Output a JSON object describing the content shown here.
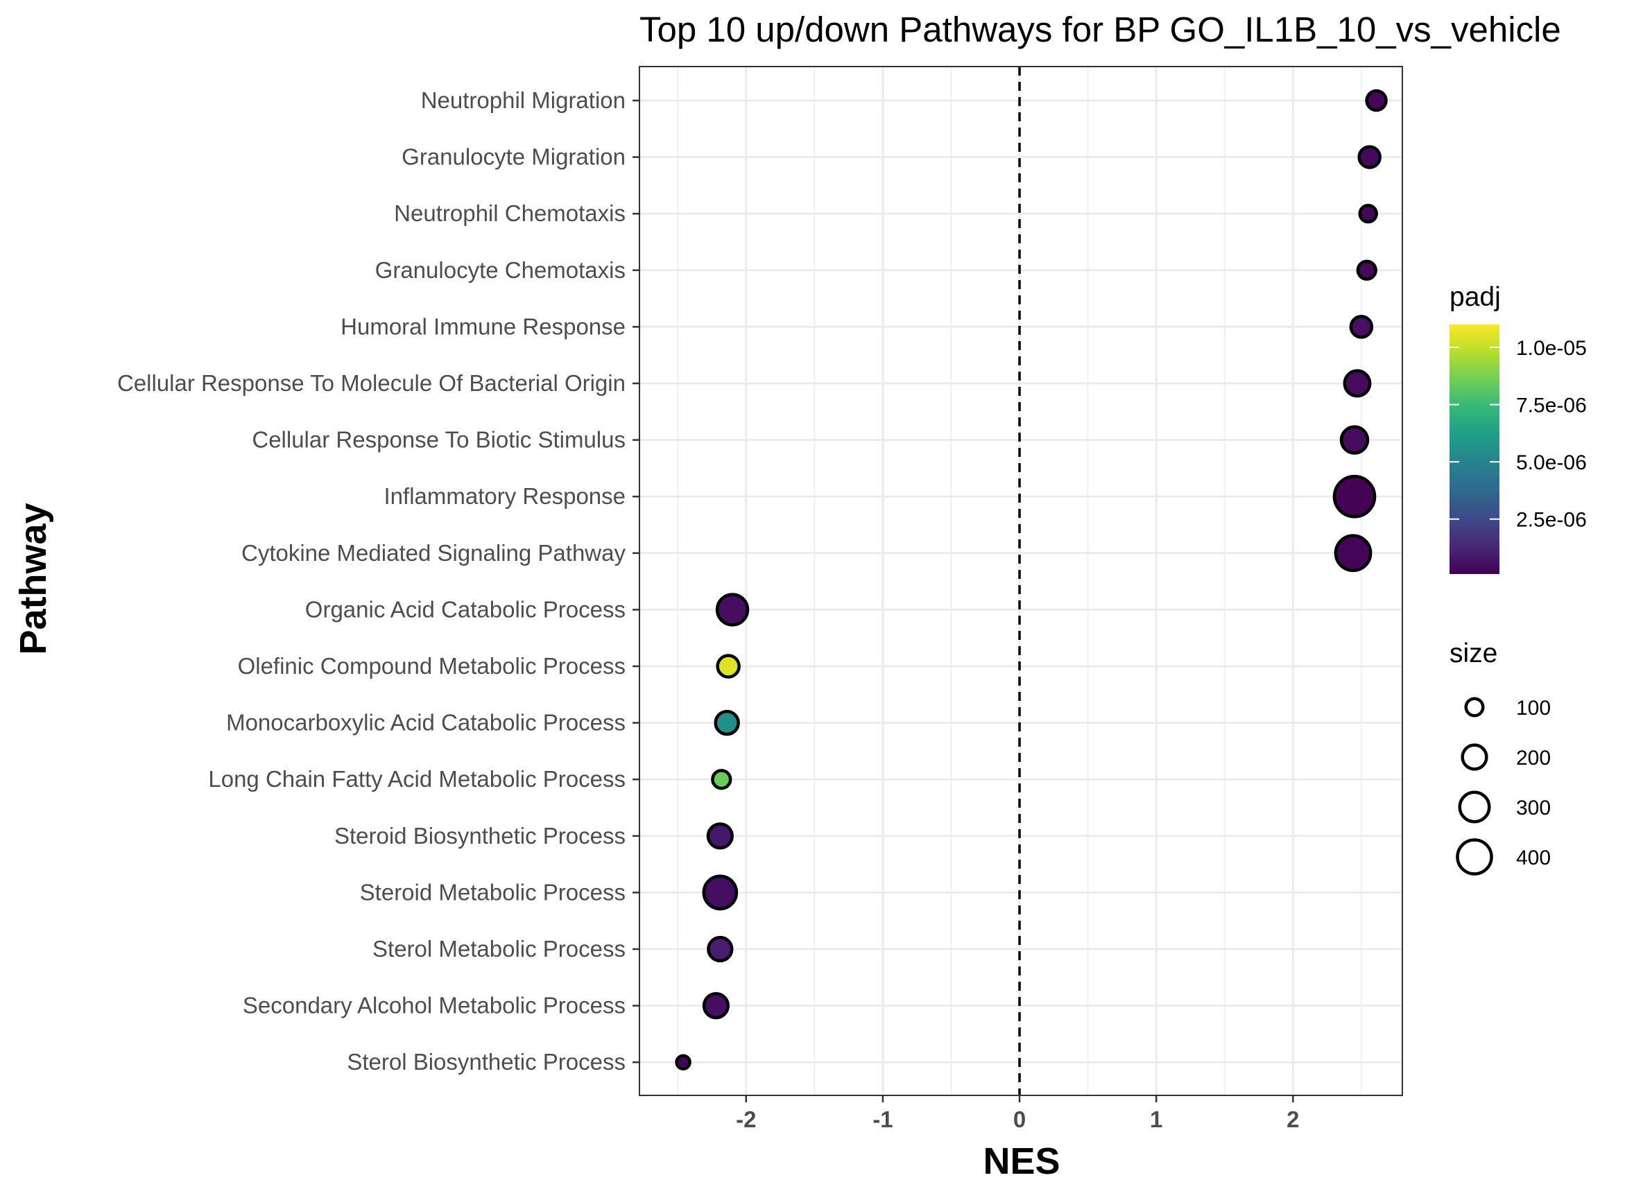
{
  "chart_data": {
    "type": "scatter",
    "title": "Top 10 up/down Pathways for BP GO_IL1B_10_vs_vehicle",
    "xlabel": "NES",
    "ylabel": "Pathway",
    "xlim": [
      -2.78,
      2.8
    ],
    "xticks": [
      -2,
      -1,
      0,
      1,
      2
    ],
    "xtick_labels": [
      "-2",
      "-1",
      "0",
      "1",
      "2"
    ],
    "grid": true,
    "reference_line": {
      "x": 0,
      "style": "dashed"
    },
    "categories": [
      "Neutrophil Migration",
      "Granulocyte Migration",
      "Neutrophil Chemotaxis",
      "Granulocyte Chemotaxis",
      "Humoral Immune Response",
      "Cellular Response To Molecule Of Bacterial Origin",
      "Cellular Response To Biotic Stimulus",
      "Inflammatory Response",
      "Cytokine Mediated Signaling Pathway",
      "Organic Acid Catabolic Process",
      "Olefinic Compound Metabolic Process",
      "Monocarboxylic Acid Catabolic Process",
      "Long Chain Fatty Acid Metabolic Process",
      "Steroid Biosynthetic Process",
      "Steroid Metabolic Process",
      "Sterol Metabolic Process",
      "Secondary Alcohol Metabolic Process",
      "Sterol Biosynthetic Process"
    ],
    "points": [
      {
        "pathway": "Neutrophil Migration",
        "nes": 2.61,
        "size": 130,
        "padj": 3e-07
      },
      {
        "pathway": "Granulocyte Migration",
        "nes": 2.56,
        "size": 150,
        "padj": 3.5e-07
      },
      {
        "pathway": "Neutrophil Chemotaxis",
        "nes": 2.55,
        "size": 95,
        "padj": 3e-07
      },
      {
        "pathway": "Granulocyte Chemotaxis",
        "nes": 2.54,
        "size": 110,
        "padj": 3.5e-07
      },
      {
        "pathway": "Humoral Immune Response",
        "nes": 2.5,
        "size": 150,
        "padj": 6e-07
      },
      {
        "pathway": "Cellular Response To Molecule Of Bacterial Origin",
        "nes": 2.47,
        "size": 220,
        "padj": 4e-07
      },
      {
        "pathway": "Cellular Response To Biotic Stimulus",
        "nes": 2.45,
        "size": 240,
        "padj": 4e-07
      },
      {
        "pathway": "Inflammatory Response",
        "nes": 2.45,
        "size": 560,
        "padj": 1.5e-07
      },
      {
        "pathway": "Cytokine Mediated Signaling Pathway",
        "nes": 2.44,
        "size": 420,
        "padj": 2e-07
      },
      {
        "pathway": "Organic Acid Catabolic Process",
        "nes": -2.1,
        "size": 320,
        "padj": 5e-07
      },
      {
        "pathway": "Olefinic Compound Metabolic Process",
        "nes": -2.13,
        "size": 160,
        "padj": 1.05e-05
      },
      {
        "pathway": "Monocarboxylic Acid Catabolic Process",
        "nes": -2.14,
        "size": 180,
        "padj": 5.5e-06
      },
      {
        "pathway": "Long Chain Fatty Acid Metabolic Process",
        "nes": -2.18,
        "size": 110,
        "padj": 8.5e-06
      },
      {
        "pathway": "Steroid Biosynthetic Process",
        "nes": -2.19,
        "size": 200,
        "padj": 8e-07
      },
      {
        "pathway": "Steroid Metabolic Process",
        "nes": -2.19,
        "size": 370,
        "padj": 5e-07
      },
      {
        "pathway": "Sterol Metabolic Process",
        "nes": -2.19,
        "size": 190,
        "padj": 1e-06
      },
      {
        "pathway": "Secondary Alcohol Metabolic Process",
        "nes": -2.22,
        "size": 200,
        "padj": 5e-07
      },
      {
        "pathway": "Sterol Biosynthetic Process",
        "nes": -2.46,
        "size": 60,
        "padj": 2e-07
      }
    ],
    "color_legend": {
      "title": "padj",
      "range": [
        1e-07,
        1.1e-05
      ],
      "ticks": [
        2.5e-06,
        5e-06,
        7.5e-06,
        1e-05
      ],
      "tick_labels": [
        "2.5e-06",
        "5.0e-06",
        "7.5e-06",
        "1.0e-05"
      ],
      "colormap": "viridis",
      "stops": [
        "#440154",
        "#482878",
        "#3e4a89",
        "#31688e",
        "#26828e",
        "#1f9e89",
        "#35b779",
        "#6ece58",
        "#b5de2b",
        "#fde725"
      ]
    },
    "size_legend": {
      "title": "size",
      "values": [
        100,
        200,
        300,
        400
      ],
      "labels": [
        "100",
        "200",
        "300",
        "400"
      ]
    },
    "legend_position": "right"
  }
}
